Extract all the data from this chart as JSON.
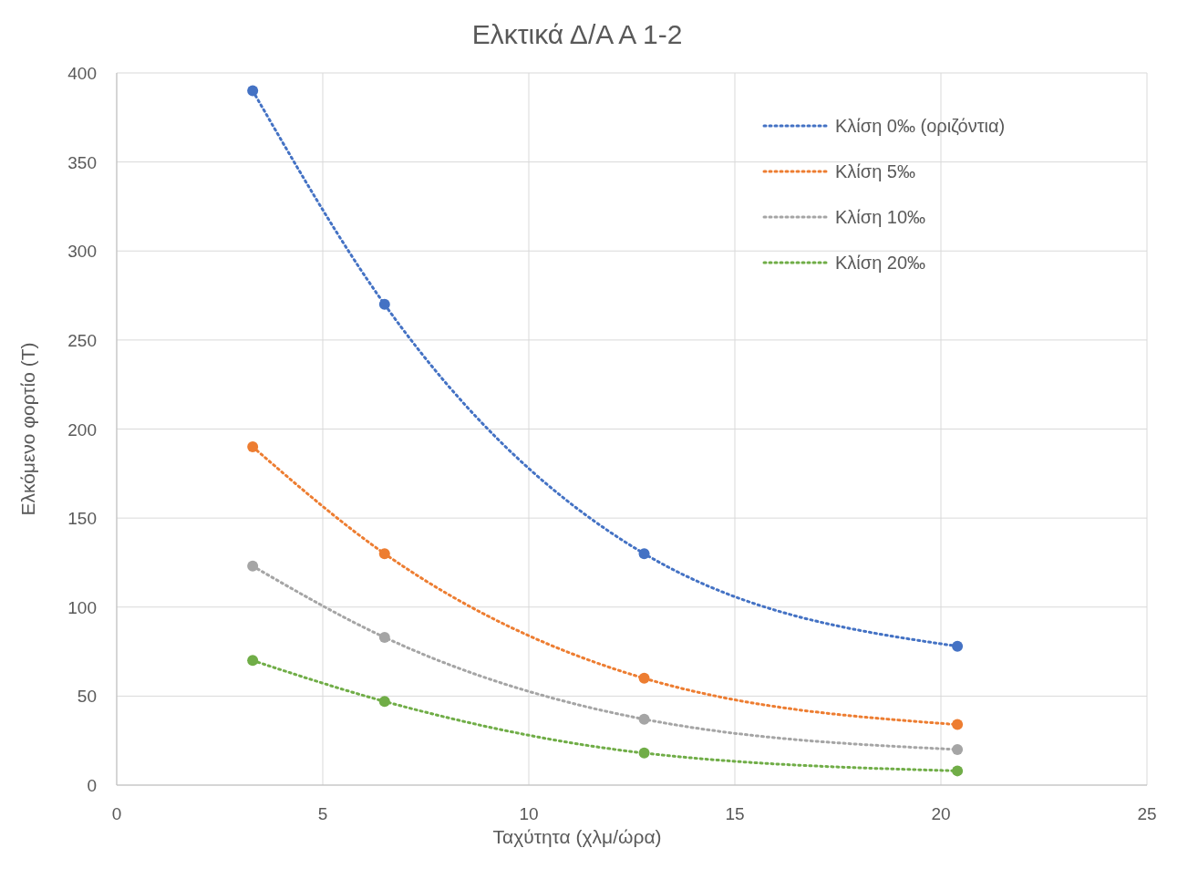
{
  "chart_data": {
    "type": "line",
    "title": "Ελκτικά Δ/Α Α 1-2",
    "xlabel": "Ταχύτητα (χλμ/ώρα)",
    "ylabel": "Ελκόμενο φορτίο (Τ)",
    "x": [
      3.3,
      6.5,
      12.8,
      20.4
    ],
    "series": [
      {
        "name": "Κλίση 0‰ (οριζόντια)",
        "color": "#4472c4",
        "values": [
          390,
          270,
          130,
          78
        ]
      },
      {
        "name": "Κλίση 5‰",
        "color": "#ed7d31",
        "values": [
          190,
          130,
          60,
          34
        ]
      },
      {
        "name": "Κλίση 10‰",
        "color": "#a5a5a5",
        "values": [
          123,
          83,
          37,
          20
        ]
      },
      {
        "name": "Κλίση 20‰",
        "color": "#70ad47",
        "values": [
          70,
          47,
          18,
          8
        ]
      }
    ],
    "xlim": [
      0,
      25
    ],
    "xticks": [
      0,
      5,
      10,
      15,
      20,
      25
    ],
    "ylim": [
      0,
      400
    ],
    "yticks": [
      0,
      50,
      100,
      150,
      200,
      250,
      300,
      350,
      400
    ],
    "grid": true,
    "legend": "top right",
    "marker": "circle",
    "line_style": "dotted"
  }
}
